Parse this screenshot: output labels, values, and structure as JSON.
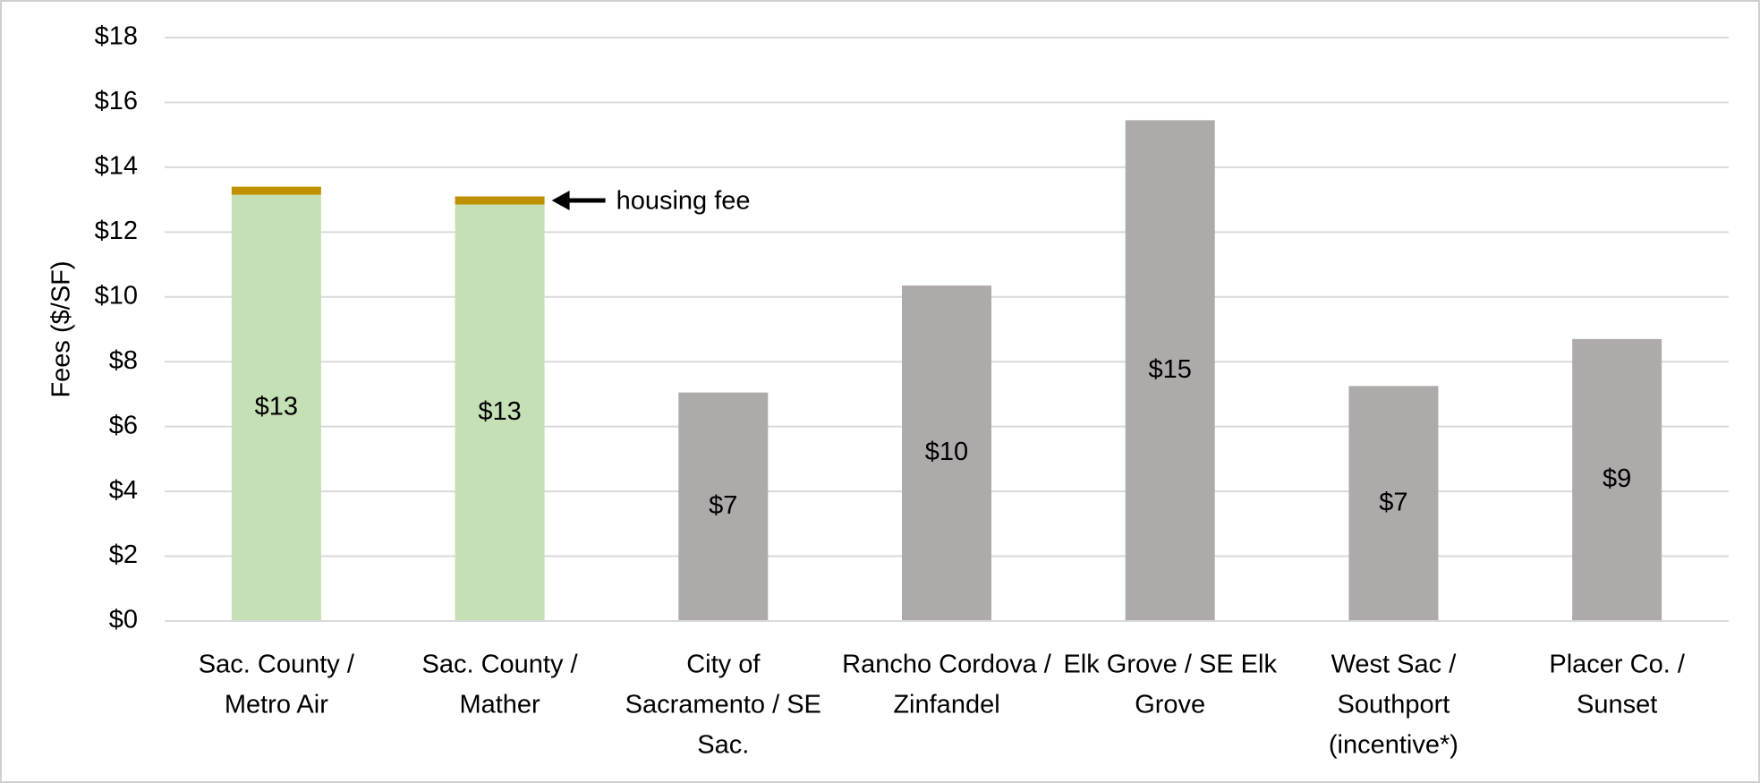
{
  "chart_data": {
    "type": "stacked_bar",
    "y_label": "Fees ($/SF)",
    "categories": [
      [
        "Sac. County /",
        "Metro Air"
      ],
      [
        "Sac. County  /",
        "Mather"
      ],
      [
        "City of",
        "Sacramento / SE",
        "Sac."
      ],
      [
        "Rancho Cordova /",
        "Zinfandel"
      ],
      [
        "Elk Grove / SE Elk",
        "Grove"
      ],
      [
        "West Sac  /",
        "Southport",
        "(incentive*)"
      ],
      [
        "Placer Co.  /",
        "Sunset"
      ]
    ],
    "series": [
      {
        "colors": [
          "#c5e0b4",
          "#c5e0b4",
          "#aeaaaa",
          "#aeaaaa",
          "#aeaaaa",
          "#aeaaaa",
          "#aeaaaa"
        ],
        "values": [
          13.15,
          12.85,
          7.05,
          10.35,
          15.45,
          7.25,
          8.7
        ],
        "value_labels": [
          "$13",
          "$13",
          "$7",
          "$10",
          "$15",
          "$7",
          "$9"
        ]
      },
      {
        "color": "#bf9000",
        "values": [
          0.25,
          0.25,
          null,
          null,
          null,
          null,
          null
        ]
      }
    ],
    "annotation": "housing fee",
    "ylim": [
      0,
      18
    ],
    "yticks": [
      {
        "value": 0,
        "label": "$0"
      },
      {
        "value": 2,
        "label": "$2"
      },
      {
        "value": 4,
        "label": "$4"
      },
      {
        "value": 6,
        "label": "$6"
      },
      {
        "value": 8,
        "label": "$8"
      },
      {
        "value": 10,
        "label": "$10"
      },
      {
        "value": 12,
        "label": "$12"
      },
      {
        "value": 14,
        "label": "$14"
      },
      {
        "value": 16,
        "label": "$16"
      },
      {
        "value": 18,
        "label": "$18"
      }
    ],
    "grid": true
  }
}
